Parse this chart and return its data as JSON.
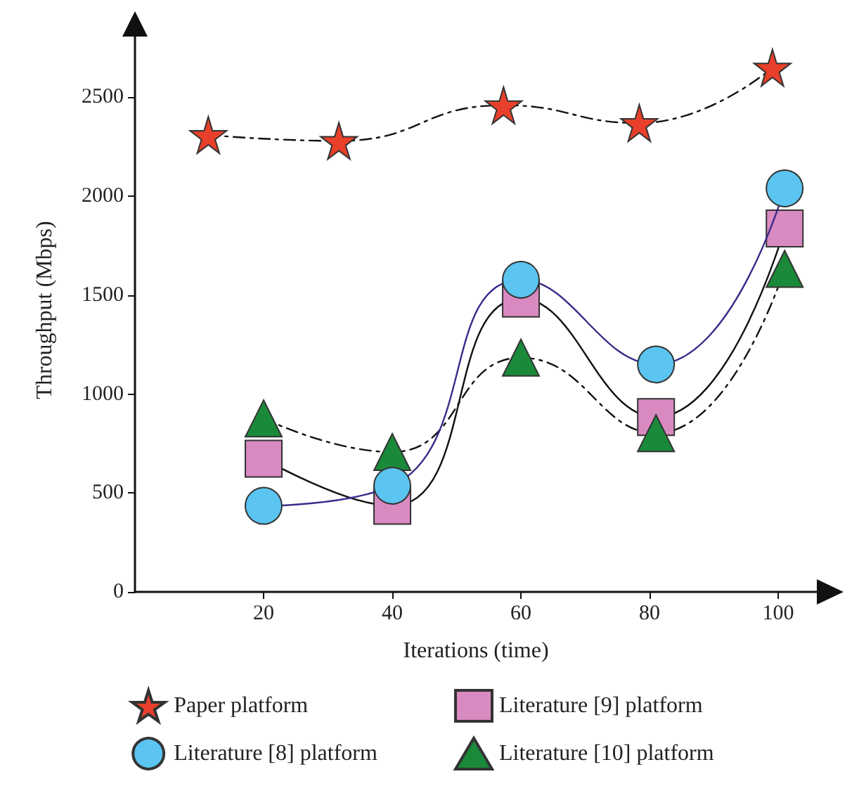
{
  "chart_data": {
    "type": "line",
    "xlabel": "Iterations (time)",
    "ylabel": "Throughput (Mbps)",
    "xlim": [
      0,
      106
    ],
    "xticks": [
      20,
      40,
      60,
      80,
      100
    ],
    "ylim": [
      0,
      2850
    ],
    "yticks": [
      0,
      500,
      1000,
      1500,
      2000,
      2500
    ],
    "grid": false,
    "legend": "bottom",
    "series": [
      {
        "name": "Paper platform",
        "color": "#e8402a",
        "marker": "star",
        "line_style": "dashed",
        "x": [
          11.4,
          31.7,
          57.3,
          78.4,
          99.1
        ],
        "values": [
          2310,
          2280,
          2460,
          2370,
          2650
        ]
      },
      {
        "name": "Literature [8] platform",
        "color": "#5bc4f0",
        "marker": "circle",
        "line_style": "solid",
        "x": [
          20,
          40,
          60,
          81,
          101
        ],
        "values": [
          435,
          537,
          1578,
          1150,
          2040
        ]
      },
      {
        "name": "Literature [9] platform",
        "color": "#d98ac0",
        "marker": "square",
        "line_style": "solid",
        "x": [
          20,
          40,
          60,
          81,
          101
        ],
        "values": [
          673,
          435,
          1483,
          884,
          1837
        ]
      },
      {
        "name": "Literature [10] platform",
        "color": "#1a8a3a",
        "marker": "triangle",
        "line_style": "dashed",
        "x": [
          20,
          40,
          60,
          81,
          101
        ],
        "values": [
          877,
          707,
          1184,
          802,
          1633
        ]
      }
    ]
  }
}
